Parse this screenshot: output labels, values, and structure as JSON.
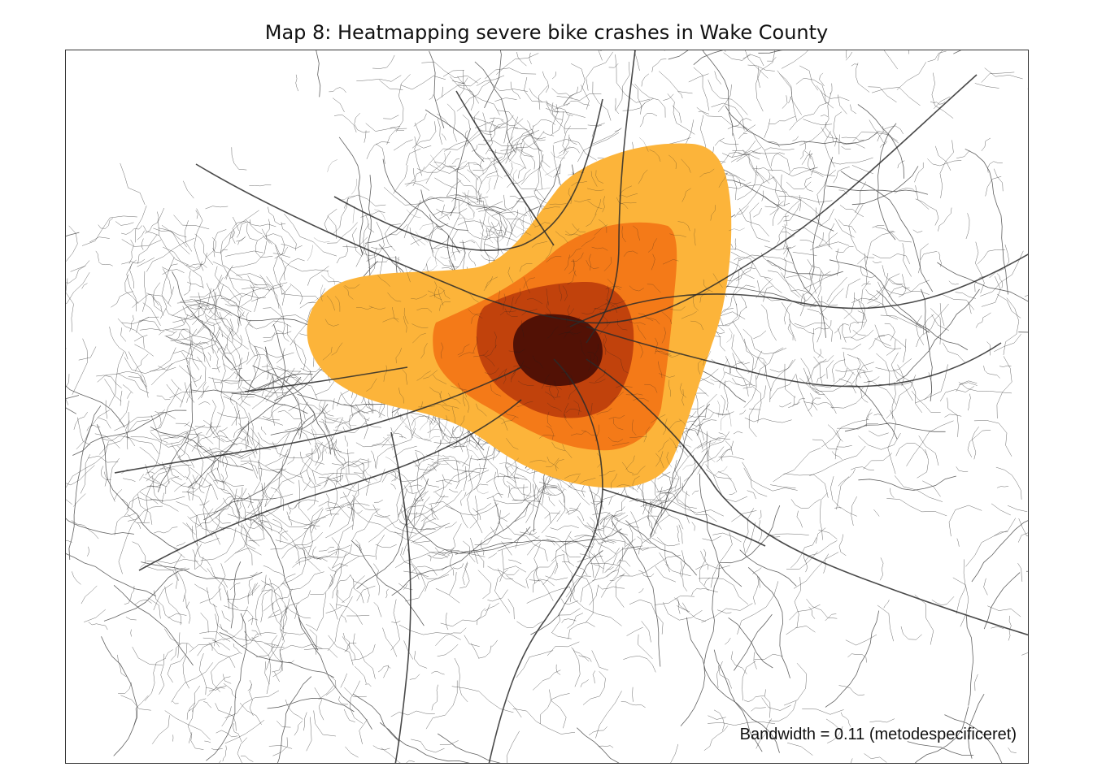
{
  "map": {
    "title": "Map 8: Heatmapping severe bike crashes in Wake County",
    "note": "Bandwidth = 0.11 (metodespecificeret)"
  },
  "density_levels": [
    {
      "level": 1,
      "color": "#fcb43a"
    },
    {
      "level": 2,
      "color": "#f47a18"
    },
    {
      "level": 3,
      "color": "#c1420c"
    },
    {
      "level": 4,
      "color": "#521105"
    }
  ],
  "colors": {
    "road": "#3a3a3a",
    "frame": "#333333",
    "background": "#ffffff"
  }
}
